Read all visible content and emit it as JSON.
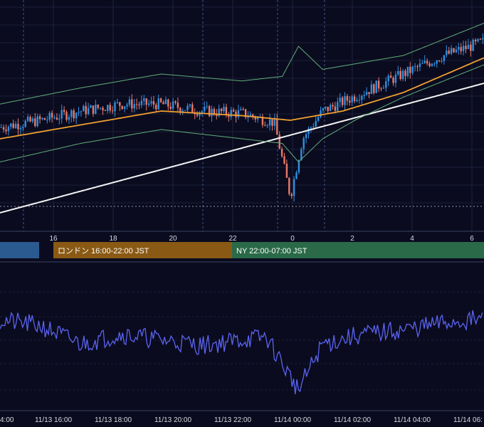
{
  "chart_data": {
    "type": "line",
    "theme": {
      "background": "#0b0b1f",
      "grid": "#2a3550",
      "candle_up": "#2f8fe0",
      "candle_down": "#e87a6a",
      "bollinger": "#5fae7a",
      "ma_short": "#f0a030",
      "ma_long": "#f4f4f4",
      "oscillator": "#5a64f0",
      "session_tokyo": "#2a5a90",
      "session_london": "#8a5a14",
      "session_ny": "#2a6a48"
    },
    "price_axis": {
      "tick_labels": [
        "16",
        "18",
        "20",
        "22",
        "0",
        "2",
        "4",
        "6"
      ]
    },
    "sessions": [
      {
        "label": "",
        "color": "#2a5a90"
      },
      {
        "label": "ロンドン 16:00-22:00 JST",
        "color": "#8a5a14"
      },
      {
        "label": "NY 22:00-07:00 JST",
        "color": "#2a6a48"
      }
    ],
    "time_axis": {
      "tick_labels": [
        "4:00",
        "11/13 16:00",
        "11/13 18:00",
        "11/13 20:00",
        "11/13 22:00",
        "11/14 00:00",
        "11/14 02:00",
        "11/14 04:00",
        "11/14 06:"
      ]
    },
    "series": [
      {
        "name": "",
        "kind": "candlestick",
        "trend": [
          [
            0,
            45
          ],
          [
            10,
            48
          ],
          [
            20,
            52
          ],
          [
            30,
            55
          ],
          [
            40,
            55
          ],
          [
            50,
            52
          ],
          [
            60,
            51
          ],
          [
            68,
            47
          ],
          [
            72,
            15
          ],
          [
            75,
            40
          ],
          [
            80,
            52
          ],
          [
            90,
            60
          ],
          [
            100,
            68
          ],
          [
            110,
            76
          ],
          [
            120,
            82
          ]
        ]
      },
      {
        "name": "",
        "kind": "moving-average-short",
        "trend": [
          [
            0,
            40
          ],
          [
            20,
            46
          ],
          [
            40,
            52
          ],
          [
            60,
            50
          ],
          [
            72,
            48
          ],
          [
            85,
            52
          ],
          [
            100,
            60
          ],
          [
            120,
            75
          ]
        ]
      },
      {
        "name": "",
        "kind": "moving-average-long",
        "trend": [
          [
            0,
            8
          ],
          [
            30,
            22
          ],
          [
            60,
            36
          ],
          [
            90,
            50
          ],
          [
            120,
            64
          ]
        ]
      },
      {
        "name": "",
        "kind": "bollinger-upper",
        "trend": [
          [
            0,
            55
          ],
          [
            20,
            62
          ],
          [
            40,
            68
          ],
          [
            60,
            65
          ],
          [
            70,
            67
          ],
          [
            74,
            80
          ],
          [
            80,
            70
          ],
          [
            100,
            76
          ],
          [
            120,
            90
          ]
        ]
      },
      {
        "name": "",
        "kind": "bollinger-lower",
        "trend": [
          [
            0,
            30
          ],
          [
            20,
            38
          ],
          [
            40,
            44
          ],
          [
            60,
            40
          ],
          [
            70,
            38
          ],
          [
            74,
            30
          ],
          [
            80,
            40
          ],
          [
            88,
            48
          ],
          [
            100,
            58
          ],
          [
            120,
            72
          ]
        ]
      },
      {
        "name": "",
        "kind": "oscillator",
        "trend": [
          [
            0,
            62
          ],
          [
            10,
            58
          ],
          [
            20,
            45
          ],
          [
            30,
            52
          ],
          [
            40,
            48
          ],
          [
            50,
            44
          ],
          [
            60,
            48
          ],
          [
            66,
            50
          ],
          [
            74,
            12
          ],
          [
            80,
            45
          ],
          [
            90,
            52
          ],
          [
            100,
            55
          ],
          [
            110,
            60
          ],
          [
            120,
            63
          ]
        ]
      }
    ]
  }
}
